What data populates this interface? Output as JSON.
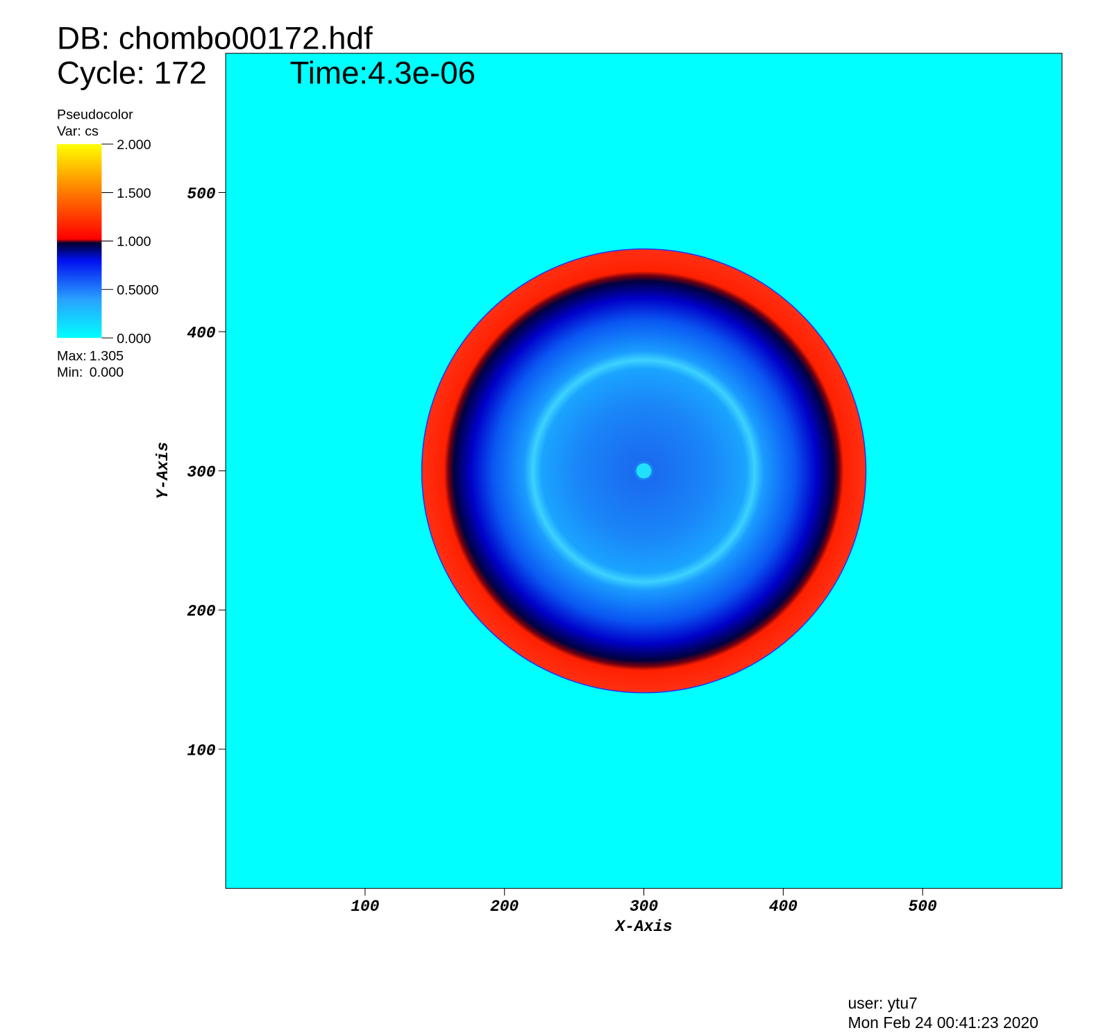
{
  "chart_data": {
    "type": "pseudocolor",
    "title": "DB: chombo00172.hdf",
    "cycle": "Cycle: 172",
    "time": "Time:4.3e-06",
    "xlabel": "X-Axis",
    "ylabel": "Y-Axis",
    "xlim": [
      0,
      600
    ],
    "ylim": [
      0,
      600
    ],
    "xticks": [
      100,
      200,
      300,
      400,
      500
    ],
    "yticks": [
      100,
      200,
      300,
      400,
      500
    ],
    "colorbar": {
      "plot": "Pseudocolor",
      "var": "Var: cs",
      "clim": [
        0,
        2
      ],
      "ticks": [
        {
          "value": 0,
          "label": "0.000"
        },
        {
          "value": 0.5,
          "label": "0.5000"
        },
        {
          "value": 1,
          "label": "1.000"
        },
        {
          "value": 1.5,
          "label": "1.500"
        },
        {
          "value": 2,
          "label": "2.000"
        }
      ],
      "max_label": "Max:",
      "max": 1.305,
      "min_label": "Min:",
      "min": {
        "value": 0,
        "label": "0.000"
      }
    },
    "footer": {
      "user": "user: ytu7",
      "date": "Mon Feb 24 00:41:23 2020"
    }
  }
}
